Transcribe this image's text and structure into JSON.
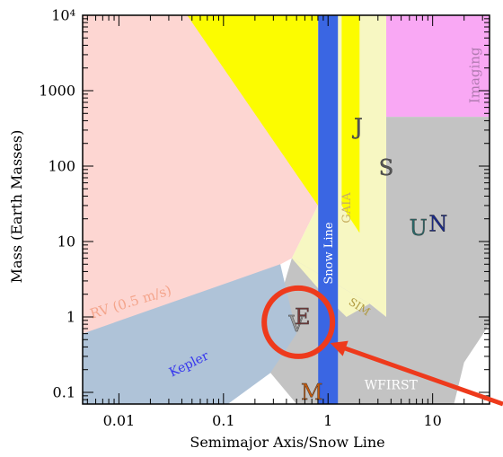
{
  "chart_data": {
    "type": "area",
    "title": "",
    "xlabel": "Semimajor Axis/Snow Line",
    "ylabel": "Mass (Earth Masses)",
    "xscale": "log",
    "yscale": "log",
    "xlim": [
      0.0045,
      35
    ],
    "ylim": [
      0.07,
      10000
    ],
    "xticks": [
      {
        "value": 0.01,
        "label": "0.01"
      },
      {
        "value": 0.1,
        "label": "0.1"
      },
      {
        "value": 1,
        "label": "1"
      },
      {
        "value": 10,
        "label": "10"
      }
    ],
    "yticks": [
      {
        "value": 0.1,
        "label": "0.1"
      },
      {
        "value": 1,
        "label": "1"
      },
      {
        "value": 10,
        "label": "10"
      },
      {
        "value": 100,
        "label": "100"
      },
      {
        "value": 1000,
        "label": "1000"
      },
      {
        "value": 10000,
        "label": "10⁴"
      }
    ],
    "regions": [
      {
        "id": "rv",
        "label": "RV (0.5 m/s)",
        "color": "#fdd6d2",
        "polygon": [
          [
            0.0045,
            10000
          ],
          [
            0.8,
            10000
          ],
          [
            0.8,
            30
          ],
          [
            0.45,
            6
          ],
          [
            0.0045,
            0.2
          ]
        ]
      },
      {
        "id": "gaia",
        "label": "GAIA",
        "color": "#f7f7c2",
        "polygon": [
          [
            0.8,
            10000
          ],
          [
            3.6,
            10000
          ],
          [
            3.6,
            1
          ],
          [
            2.5,
            1.5
          ],
          [
            0.45,
            6
          ],
          [
            0.8,
            30
          ]
        ]
      },
      {
        "id": "imaging",
        "label": "Imaging",
        "color": "#f9a8f4",
        "polygon": [
          [
            3.6,
            10000
          ],
          [
            35,
            10000
          ],
          [
            35,
            450
          ],
          [
            3.6,
            450
          ]
        ]
      },
      {
        "id": "wfirst",
        "label": "WFIRST",
        "color": "#c3c3c3",
        "polygon": [
          [
            3.6,
            450
          ],
          [
            35,
            450
          ],
          [
            35,
            0.8
          ],
          [
            20,
            0.25
          ],
          [
            16,
            0.07
          ],
          [
            1.5,
            0.07
          ],
          [
            0.5,
            0.07
          ],
          [
            0.2,
            0.32
          ],
          [
            0.3,
            0.9
          ],
          [
            0.45,
            6
          ],
          [
            2.5,
            1.5
          ],
          [
            3.6,
            1
          ]
        ]
      },
      {
        "id": "kepler",
        "label": "Kepler",
        "color": "#afc3d8",
        "polygon": [
          [
            0.0045,
            0.6
          ],
          [
            0.35,
            5
          ],
          [
            0.5,
            0.6
          ],
          [
            0.28,
            0.18
          ],
          [
            0.11,
            0.07
          ],
          [
            0.0045,
            0.07
          ]
        ]
      },
      {
        "id": "sim",
        "label": "SIM",
        "color": "#f7f7c2",
        "polygon": [
          [
            2.5,
            1.5
          ],
          [
            1.5,
            1
          ],
          [
            0.9,
            2
          ],
          [
            0.45,
            6
          ]
        ]
      },
      {
        "id": "yellow",
        "label": "",
        "color": "#fcfc00",
        "polygon": [
          [
            0.045,
            10000
          ],
          [
            0.8,
            10000
          ],
          [
            0.8,
            30
          ]
        ]
      },
      {
        "id": "yellow2",
        "label": "",
        "color": "#fcfc00",
        "polygon": [
          [
            1.35,
            10000
          ],
          [
            2.0,
            10000
          ],
          [
            2.0,
            13
          ],
          [
            1.35,
            30
          ]
        ]
      }
    ],
    "snow_line": {
      "label": "Snow Line",
      "x": 1,
      "color": "#3a66e3"
    },
    "planets": [
      {
        "id": "mercury",
        "label": "M",
        "x": 0.7,
        "y": 0.1,
        "color": "#c45a0c"
      },
      {
        "id": "venus",
        "label": "V",
        "x": 0.5,
        "y": 0.8,
        "color": "#9a9a9a"
      },
      {
        "id": "earth",
        "label": "E",
        "x": 0.57,
        "y": 1,
        "color": "#7a3a3a"
      },
      {
        "id": "jupiter",
        "label": "J",
        "x": 1.95,
        "y": 330,
        "color": "#555555"
      },
      {
        "id": "saturn",
        "label": "S",
        "x": 3.6,
        "y": 95,
        "color": "#555555"
      },
      {
        "id": "uranus",
        "label": "U",
        "x": 7.3,
        "y": 15,
        "color": "#2a6a6a"
      },
      {
        "id": "neptune",
        "label": "N",
        "x": 11.3,
        "y": 17,
        "color": "#1a2a8a"
      }
    ],
    "annotations": [
      {
        "id": "habitable-circle",
        "type": "circle",
        "color": "#ee3a1c"
      },
      {
        "id": "snow-line-arrow",
        "type": "arrow",
        "color": "#ee3a1c"
      }
    ],
    "grid": false,
    "legend": "none"
  }
}
